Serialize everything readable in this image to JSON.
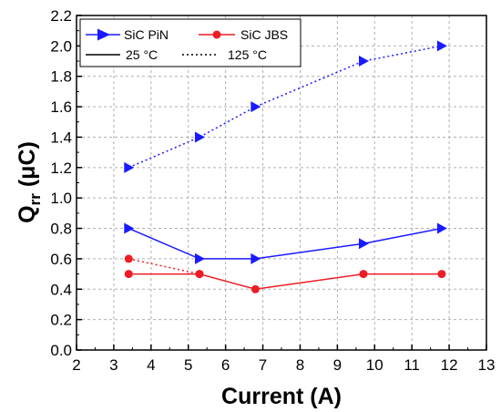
{
  "chart_data": {
    "type": "line",
    "xlabel": "Current (A)",
    "ylabel_main": "Q",
    "ylabel_sub": "rr",
    "ylabel_unit": " (μC)",
    "xlim": [
      2,
      13
    ],
    "ylim": [
      0.0,
      2.2
    ],
    "xticks": [
      "2",
      "3",
      "4",
      "5",
      "6",
      "7",
      "8",
      "9",
      "10",
      "11",
      "12",
      "13"
    ],
    "yticks": [
      "0.0",
      "0.2",
      "0.4",
      "0.6",
      "0.8",
      "1.0",
      "1.2",
      "1.4",
      "1.6",
      "1.8",
      "2.0",
      "2.2"
    ],
    "grid": true,
    "legend": {
      "position": "top-left",
      "items": [
        {
          "label": "SiC PiN",
          "color": "#1a1aff",
          "marker": "triangle-right",
          "line": "solid"
        },
        {
          "label": "SiC JBS",
          "color": "#ee1c24",
          "marker": "circle",
          "line": "solid"
        },
        {
          "label": "25 °C",
          "color": "#000000",
          "marker": "none",
          "line": "solid"
        },
        {
          "label": "125 °C",
          "color": "#000000",
          "marker": "none",
          "line": "dotted"
        }
      ]
    },
    "series": [
      {
        "device": "SiC PiN",
        "temperature": "25 °C",
        "color": "#1a1aff",
        "marker": "triangle-right",
        "line": "solid",
        "x": [
          3.4,
          5.3,
          6.8,
          9.7,
          11.8
        ],
        "y": [
          0.8,
          0.6,
          0.6,
          0.7,
          0.8
        ]
      },
      {
        "device": "SiC PiN",
        "temperature": "125 °C",
        "color": "#1a1aff",
        "marker": "triangle-right",
        "line": "dotted",
        "x": [
          3.4,
          5.3,
          6.8,
          9.7,
          11.8
        ],
        "y": [
          1.2,
          1.4,
          1.6,
          1.9,
          2.0
        ]
      },
      {
        "device": "SiC JBS",
        "temperature": "25 °C",
        "color": "#ee1c24",
        "marker": "circle",
        "line": "solid",
        "x": [
          3.4,
          5.3,
          6.8,
          9.7,
          11.8
        ],
        "y": [
          0.5,
          0.5,
          0.4,
          0.5,
          0.5
        ]
      },
      {
        "device": "SiC JBS",
        "temperature": "125 °C",
        "color": "#ee1c24",
        "marker": "circle",
        "line": "dotted",
        "x": [
          3.4,
          5.3
        ],
        "y": [
          0.6,
          0.5
        ]
      }
    ]
  }
}
